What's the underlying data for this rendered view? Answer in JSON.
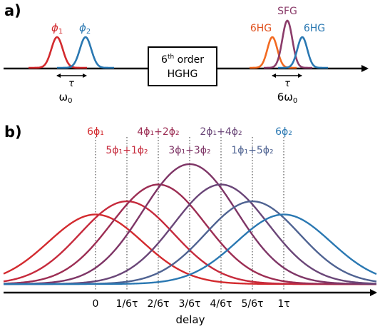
{
  "panel_a": {
    "label": "a)",
    "input_pulses": {
      "phi1_label": "ϕ",
      "phi1_sub": "1",
      "phi2_label": "ϕ",
      "phi2_sub": "2",
      "tau_label": "τ",
      "freq_label": "ω",
      "freq_sub": "0"
    },
    "box": {
      "line1_pre": "6",
      "line1_sup": "th",
      "line1_post": " order",
      "line2": "HGHG"
    },
    "output_pulses": {
      "sfg_label": "SFG",
      "hg_left_label": "6HG",
      "hg_right_label": "6HG",
      "tau_label": "τ",
      "freq_label": "6ω",
      "freq_sub": "0"
    }
  },
  "panel_b": {
    "label": "b)",
    "axis_label": "delay",
    "ticks": [
      "0",
      "1/6τ",
      "2/6τ",
      "3/6τ",
      "4/6τ",
      "5/6τ",
      "1τ"
    ],
    "top_labels": [
      "6ϕ₁",
      "4ϕ₁+2ϕ₂",
      "2ϕ₁+4ϕ₂",
      "6ϕ₂"
    ],
    "bottom_labels": [
      "5ϕ₁+1ϕ₂",
      "3ϕ₁+3ϕ₂",
      "1ϕ₁+5ϕ₂"
    ],
    "series": [
      {
        "name": "6ϕ₁",
        "peak_delay": 0,
        "amplitude": 0.58,
        "color": "#d32a2e"
      },
      {
        "name": "5ϕ₁+1ϕ₂",
        "peak_delay": 1,
        "amplitude": 0.69,
        "color": "#c62a3c"
      },
      {
        "name": "4ϕ₁+2ϕ₂",
        "peak_delay": 2,
        "amplitude": 0.83,
        "color": "#9c2d53"
      },
      {
        "name": "3ϕ₁+3ϕ₂",
        "peak_delay": 3,
        "amplitude": 1.0,
        "color": "#7e3566"
      },
      {
        "name": "2ϕ₁+4ϕ₂",
        "peak_delay": 4,
        "amplitude": 0.83,
        "color": "#6a4678"
      },
      {
        "name": "1ϕ₁+5ϕ₂",
        "peak_delay": 5,
        "amplitude": 0.69,
        "color": "#4f6392"
      },
      {
        "name": "6ϕ₂",
        "peak_delay": 6,
        "amplitude": 0.58,
        "color": "#2a78b2"
      }
    ]
  },
  "colors": {
    "phi1": "#d32a2e",
    "phi2": "#2a78b2",
    "sfg": "#8b3c6a",
    "hg_orange": "#f26a21",
    "axis": "#000000"
  }
}
